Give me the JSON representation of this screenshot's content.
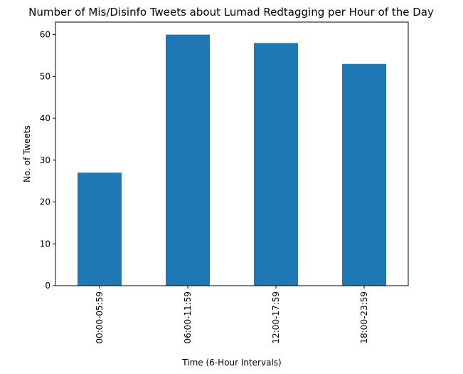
{
  "chart_data": {
    "type": "bar",
    "title": "Number of Mis/Disinfo Tweets about Lumad Redtagging per Hour of the Day",
    "xlabel": "Time (6-Hour Intervals)",
    "ylabel": "No. of Tweets",
    "categories": [
      "00:00-05:59",
      "06:00-11:59",
      "12:00-17:59",
      "18:00-23:59"
    ],
    "values": [
      27,
      60,
      58,
      53
    ],
    "ylim": [
      0,
      63
    ],
    "yticks": [
      0,
      10,
      20,
      30,
      40,
      50,
      60
    ],
    "bar_color": "#1f77b4",
    "grid": false,
    "legend": "none"
  }
}
